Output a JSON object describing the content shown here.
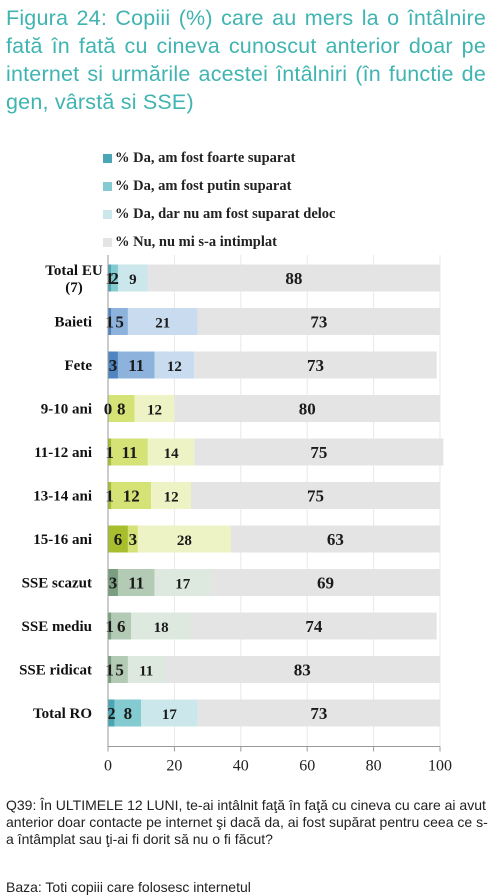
{
  "title": "Figura 24: Copiii (%) care au mers la o întâlnire fată în fată cu cineva cunoscut anterior doar pe internet si urmările acestei întâlniri (în functie de gen, vârstă si SSE)",
  "footnote": "Q39: În ULTIMELE 12 LUNI, te-ai intâlnit faţă în faţă cu cineva cu care ai avut anterior doar contacte pe internet şi dacă da, ai fost supărat pentru ceea ce s-a întâmplat sau ţi-ai fi dorit să nu o fi făcut?",
  "basis": "Baza: Toti copiii care folosesc internetul",
  "chart_data": {
    "type": "bar",
    "orientation": "horizontal",
    "stacked": true,
    "legend_position": "top",
    "grid": true,
    "xlim": [
      0,
      100
    ],
    "xticks": [
      "0",
      "20",
      "40",
      "60",
      "80",
      "100"
    ],
    "categories": [
      "Total EU (7)",
      "Baieti",
      "Fete",
      "9-10 ani",
      "11-12 ani",
      "13-14 ani",
      "15-16 ani",
      "SSE scazut",
      "SSE mediu",
      "SSE ridicat",
      "Total RO"
    ],
    "category_lines": [
      [
        "Total EU",
        "(7)"
      ],
      [
        "Baieti"
      ],
      [
        "Fete"
      ],
      [
        "9-10 ani"
      ],
      [
        "11-12 ani"
      ],
      [
        "13-14 ani"
      ],
      [
        "15-16 ani"
      ],
      [
        "SSE scazut"
      ],
      [
        "SSE mediu"
      ],
      [
        "SSE ridicat"
      ],
      [
        "Total RO"
      ]
    ],
    "series": [
      {
        "name": "% Da, am fost foarte suparat",
        "values": [
          1,
          1,
          3,
          0,
          1,
          1,
          6,
          3,
          1,
          1,
          2
        ]
      },
      {
        "name": "% Da, am fost putin suparat",
        "values": [
          2,
          5,
          11,
          8,
          11,
          12,
          3,
          11,
          6,
          5,
          8
        ]
      },
      {
        "name": "% Da, dar nu am fost suparat deloc",
        "values": [
          9,
          21,
          12,
          12,
          14,
          12,
          28,
          17,
          18,
          11,
          17
        ]
      },
      {
        "name": "% Nu, nu mi s-a intimplat",
        "values": [
          88,
          73,
          73,
          80,
          75,
          75,
          63,
          69,
          74,
          83,
          73
        ]
      }
    ],
    "row_colors": [
      [
        "#4aa6b4",
        "#84cbd1",
        "#cbe7eb",
        "#e4e4e4"
      ],
      [
        "#4f86c2",
        "#8db3dc",
        "#c8dbef",
        "#e4e4e4"
      ],
      [
        "#4f86c2",
        "#8db3dc",
        "#c8dbef",
        "#e4e4e4"
      ],
      [
        "#a9be2c",
        "#d4e276",
        "#eef3c5",
        "#e4e4e4"
      ],
      [
        "#a9be2c",
        "#d4e276",
        "#eef3c5",
        "#e4e4e4"
      ],
      [
        "#a9be2c",
        "#d4e276",
        "#eef3c5",
        "#e4e4e4"
      ],
      [
        "#a9be2c",
        "#d4e276",
        "#eef3c5",
        "#e4e4e4"
      ],
      [
        "#7a9e80",
        "#b3cbb5",
        "#dde9df",
        "#e4e4e4"
      ],
      [
        "#7a9e80",
        "#b3cbb5",
        "#dde9df",
        "#e4e4e4"
      ],
      [
        "#7a9e80",
        "#b3cbb5",
        "#dde9df",
        "#e4e4e4"
      ],
      [
        "#4aa6b4",
        "#84cbd1",
        "#cbe7eb",
        "#e4e4e4"
      ]
    ],
    "legend_colors": [
      "#4aa6b4",
      "#84cbd1",
      "#cbe7eb",
      "#e4e4e4"
    ]
  }
}
